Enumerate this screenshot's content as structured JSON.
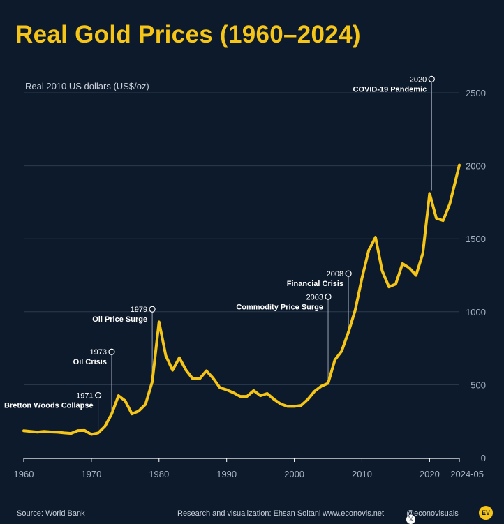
{
  "title": "Real Gold Prices (1960–2024)",
  "footer": {
    "source": "Source: World Bank",
    "credit": "Research and visualization: Ehsan Soltani",
    "website": "www.econovis.net",
    "social": "@econovisuals",
    "social_icon": "x-logo-icon",
    "logo_text": "EV"
  },
  "colors": {
    "background": "#0d1a2b",
    "line": "#f5c518",
    "grid": "#2c3b4f"
  },
  "chart_data": {
    "type": "line",
    "title": "Real Gold Prices (1960–2024)",
    "ylabel": "Real 2010 US dollars (US$/oz)",
    "xlabel": "",
    "xlim": [
      1960,
      2024.4
    ],
    "ylim": [
      0,
      2500
    ],
    "yticks": [
      0,
      500,
      1000,
      1500,
      2000,
      2500
    ],
    "xticks": [
      1960,
      1970,
      1980,
      1990,
      2000,
      2010,
      2020
    ],
    "xtick_labels": [
      "1960",
      "1970",
      "1980",
      "1990",
      "2000",
      "2010",
      "2020"
    ],
    "end_label": "2024-05",
    "grid": true,
    "series": [
      {
        "x": [
          1960,
          1961,
          1962,
          1963,
          1964,
          1965,
          1966,
          1967,
          1968,
          1969,
          1970,
          1971,
          1972,
          1973,
          1974,
          1975,
          1976,
          1977,
          1978,
          1979,
          1980,
          1981,
          1982,
          1983,
          1984,
          1985,
          1986,
          1987,
          1988,
          1989,
          1990,
          1991,
          1992,
          1993,
          1994,
          1995,
          1996,
          1997,
          1998,
          1999,
          2000,
          2001,
          2002,
          2003,
          2004,
          2005,
          2006,
          2007,
          2008,
          2009,
          2010,
          2011,
          2012,
          2013,
          2014,
          2015,
          2016,
          2017,
          2018,
          2019,
          2020,
          2021,
          2022,
          2023,
          2024.4
        ],
        "values": [
          185,
          180,
          176,
          180,
          177,
          175,
          170,
          167,
          186,
          187,
          160,
          170,
          215,
          300,
          425,
          390,
          300,
          320,
          365,
          520,
          930,
          700,
          600,
          685,
          600,
          540,
          540,
          595,
          545,
          480,
          465,
          445,
          420,
          420,
          460,
          425,
          440,
          400,
          368,
          352,
          352,
          358,
          400,
          455,
          490,
          510,
          670,
          730,
          860,
          1010,
          1230,
          1420,
          1510,
          1280,
          1170,
          1190,
          1330,
          1300,
          1250,
          1400,
          1810,
          1640,
          1625,
          1740,
          2005
        ]
      }
    ],
    "annotations": [
      {
        "year": "1971",
        "label": "Bretton Woods Collapse",
        "x": 1971,
        "value": 170
      },
      {
        "year": "1973",
        "label": "Oil Crisis",
        "x": 1973,
        "value": 300
      },
      {
        "year": "1979",
        "label": "Oil Price Surge",
        "x": 1979,
        "value": 520
      },
      {
        "year": "2003",
        "label": "Commodity Price Surge",
        "x": 2005,
        "value": 510
      },
      {
        "year": "2008",
        "label": "Financial Crisis",
        "x": 2008,
        "value": 860
      },
      {
        "year": "2020",
        "label": "COVID-19 Pandemic",
        "x": 2020.3,
        "value": 1810
      }
    ]
  }
}
